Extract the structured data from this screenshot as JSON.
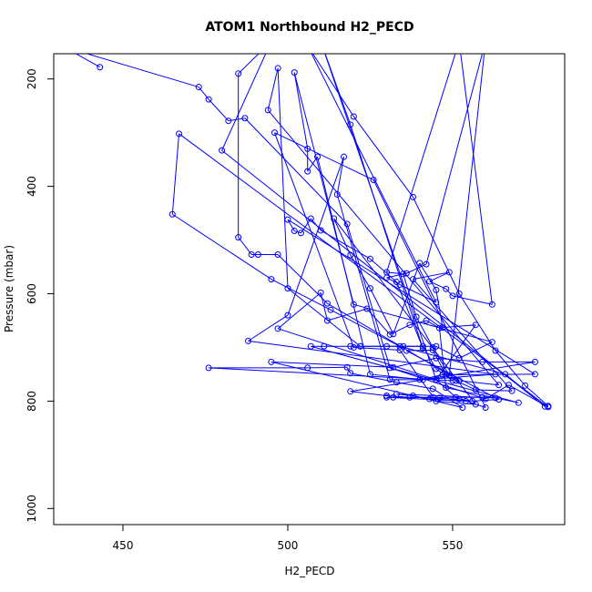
{
  "chart_data": {
    "type": "scatter",
    "title": "ATOM1 Northbound H2_PECD",
    "xlabel": "H2_PECD",
    "ylabel": "Pressure (mbar)",
    "xlim": [
      429,
      584
    ],
    "ylim": [
      1030,
      153
    ],
    "y_reversed": true,
    "x_ticks": [
      450,
      500,
      550
    ],
    "y_ticks": [
      200,
      400,
      600,
      800,
      1000
    ],
    "grid": false,
    "legend": "none",
    "colors": {
      "series": "#0000ff",
      "axis": "#000000",
      "background": "#ffffff"
    },
    "series": [
      {
        "points": [
          [
            443,
            178
          ],
          [
            432,
            140
          ],
          [
            473,
            215
          ],
          [
            476,
            238
          ],
          [
            482,
            278
          ],
          [
            487,
            273
          ],
          [
            518,
            470
          ],
          [
            531,
            738
          ],
          [
            560,
            796
          ],
          [
            567,
            770
          ],
          [
            579,
            811
          ],
          [
            467,
            302
          ],
          [
            465,
            452
          ],
          [
            495,
            573
          ],
          [
            513,
            630
          ],
          [
            534,
            698
          ],
          [
            566,
            750
          ],
          [
            578,
            810
          ],
          [
            480,
            333
          ],
          [
            495,
            130
          ],
          [
            485,
            190
          ],
          [
            485,
            495
          ],
          [
            489,
            527
          ],
          [
            491,
            527
          ],
          [
            497,
            527
          ],
          [
            512,
            618
          ],
          [
            552,
            762
          ],
          [
            564,
            770
          ],
          [
            494,
            258
          ],
          [
            497,
            180
          ],
          [
            500,
            590
          ],
          [
            522,
            698
          ],
          [
            545,
            698
          ],
          [
            552,
            720
          ],
          [
            562,
            690
          ],
          [
            520,
            620
          ],
          [
            502,
            188
          ],
          [
            506,
            330
          ],
          [
            506,
            372
          ],
          [
            509,
            345
          ],
          [
            525,
            750
          ],
          [
            541,
            760
          ],
          [
            563,
            750
          ],
          [
            488,
            688
          ],
          [
            500,
            640
          ],
          [
            517,
            345
          ],
          [
            515,
            415
          ],
          [
            531,
            760
          ],
          [
            540,
            760
          ],
          [
            547,
            751
          ],
          [
            575,
            750
          ],
          [
            500,
            462
          ],
          [
            502,
            483
          ],
          [
            504,
            487
          ],
          [
            507,
            460
          ],
          [
            510,
            482
          ],
          [
            525,
            535
          ],
          [
            533,
            578
          ],
          [
            541,
            702
          ],
          [
            519,
            285
          ],
          [
            510,
            130
          ],
          [
            545,
            760
          ],
          [
            551,
            793
          ],
          [
            560,
            812
          ],
          [
            526,
            388
          ],
          [
            496,
            300
          ],
          [
            520,
            700
          ],
          [
            534,
            705
          ],
          [
            545,
            800
          ],
          [
            557,
            806
          ],
          [
            514,
            460
          ],
          [
            519,
            528
          ],
          [
            525,
            590
          ],
          [
            532,
            675
          ],
          [
            540,
            543
          ],
          [
            545,
            593
          ],
          [
            547,
            663
          ],
          [
            557,
            658
          ],
          [
            545,
            760
          ],
          [
            497,
            665
          ],
          [
            510,
            598
          ],
          [
            512,
            650
          ],
          [
            524,
            628
          ],
          [
            531,
            676
          ],
          [
            537,
            658
          ],
          [
            542,
            650
          ],
          [
            546,
            664
          ],
          [
            548,
            775
          ],
          [
            570,
            803
          ],
          [
            507,
            698
          ],
          [
            511,
            698
          ],
          [
            519,
            698
          ],
          [
            522,
            698
          ],
          [
            530,
            698
          ],
          [
            535,
            698
          ],
          [
            541,
            698
          ],
          [
            545,
            740
          ],
          [
            550,
            762
          ],
          [
            476,
            738
          ],
          [
            506,
            738
          ],
          [
            518,
            737
          ],
          [
            519,
            748
          ],
          [
            533,
            765
          ],
          [
            544,
            777
          ],
          [
            553,
            812
          ],
          [
            495,
            727
          ],
          [
            532,
            737
          ],
          [
            545,
            720
          ],
          [
            559,
            727
          ],
          [
            575,
            727
          ],
          [
            519,
            782
          ],
          [
            530,
            790
          ],
          [
            537,
            793
          ],
          [
            546,
            794
          ],
          [
            554,
            800
          ],
          [
            530,
            793
          ],
          [
            532,
            793
          ],
          [
            544,
            793
          ],
          [
            559,
            793
          ],
          [
            563,
            794
          ],
          [
            533,
            787
          ],
          [
            538,
            790
          ],
          [
            543,
            796
          ],
          [
            552,
            796
          ],
          [
            556,
            800
          ],
          [
            564,
            797
          ],
          [
            536,
            706
          ],
          [
            544,
            705
          ],
          [
            548,
            752
          ],
          [
            551,
            762
          ],
          [
            557,
            779
          ],
          [
            568,
            781
          ],
          [
            538,
            573
          ],
          [
            549,
            560
          ],
          [
            543,
            577
          ],
          [
            548,
            591
          ],
          [
            550,
            604
          ],
          [
            562,
            620
          ],
          [
            552,
            130
          ],
          [
            530,
            560
          ],
          [
            535,
            563
          ],
          [
            539,
            643
          ],
          [
            544,
            700
          ],
          [
            549,
            752
          ],
          [
            560,
            130
          ],
          [
            542,
            545
          ],
          [
            536,
            562
          ],
          [
            530,
            570
          ],
          [
            534,
            583
          ],
          [
            545,
            616
          ],
          [
            506,
            138
          ],
          [
            520,
            270
          ],
          [
            538,
            420
          ],
          [
            552,
            600
          ],
          [
            563,
            706
          ],
          [
            572,
            771
          ],
          [
            579,
            809
          ]
        ]
      }
    ]
  }
}
